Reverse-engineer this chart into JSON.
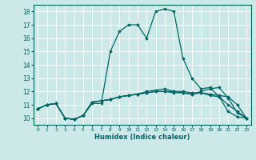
{
  "xlabel": "Humidex (Indice chaleur)",
  "ylabel": "",
  "bg_color": "#cce8e8",
  "grid_color": "#ffffff",
  "line_color": "#006666",
  "x_ticks": [
    0,
    1,
    2,
    3,
    4,
    5,
    6,
    7,
    8,
    9,
    10,
    11,
    12,
    13,
    14,
    15,
    16,
    17,
    18,
    19,
    20,
    21,
    22,
    23
  ],
  "y_ticks": [
    10,
    11,
    12,
    13,
    14,
    15,
    16,
    17,
    18
  ],
  "xlim": [
    -0.5,
    23.5
  ],
  "ylim": [
    9.5,
    18.5
  ],
  "series": [
    {
      "x": [
        0,
        1,
        2,
        3,
        4,
        5,
        6,
        7,
        8,
        9,
        10,
        11,
        12,
        13,
        14,
        15,
        16,
        17,
        18,
        19,
        20,
        21,
        22,
        23
      ],
      "y": [
        10.7,
        11.0,
        11.1,
        10.0,
        9.9,
        10.2,
        11.1,
        11.1,
        15.0,
        16.5,
        17.0,
        17.0,
        16.0,
        18.0,
        18.2,
        18.0,
        14.5,
        13.0,
        12.2,
        12.3,
        11.6,
        10.5,
        10.1,
        10.0
      ]
    },
    {
      "x": [
        0,
        1,
        2,
        3,
        4,
        5,
        6,
        7,
        8,
        9,
        10,
        11,
        12,
        13,
        14,
        15,
        16,
        17,
        18,
        19,
        20,
        21,
        22,
        23
      ],
      "y": [
        10.7,
        11.0,
        11.1,
        10.0,
        9.9,
        10.2,
        11.2,
        11.3,
        11.4,
        11.6,
        11.7,
        11.8,
        12.0,
        12.1,
        12.2,
        12.0,
        12.0,
        11.9,
        11.9,
        11.8,
        11.7,
        11.6,
        11.0,
        10.0
      ]
    },
    {
      "x": [
        0,
        1,
        2,
        3,
        4,
        5,
        6,
        7,
        8,
        9,
        10,
        11,
        12,
        13,
        14,
        15,
        16,
        17,
        18,
        19,
        20,
        21,
        22,
        23
      ],
      "y": [
        10.7,
        11.0,
        11.1,
        10.0,
        9.9,
        10.2,
        11.2,
        11.3,
        11.4,
        11.6,
        11.7,
        11.8,
        11.9,
        12.0,
        12.0,
        12.0,
        11.9,
        11.8,
        11.9,
        11.7,
        11.6,
        11.0,
        10.5,
        10.0
      ]
    },
    {
      "x": [
        0,
        1,
        2,
        3,
        4,
        5,
        6,
        7,
        8,
        9,
        10,
        11,
        12,
        13,
        14,
        15,
        16,
        17,
        18,
        19,
        20,
        21,
        22,
        23
      ],
      "y": [
        10.7,
        11.0,
        11.1,
        10.0,
        9.9,
        10.2,
        11.2,
        11.3,
        11.4,
        11.6,
        11.7,
        11.8,
        11.9,
        12.0,
        12.0,
        11.9,
        11.9,
        11.8,
        12.0,
        12.2,
        12.3,
        11.5,
        10.4,
        10.0
      ]
    }
  ]
}
